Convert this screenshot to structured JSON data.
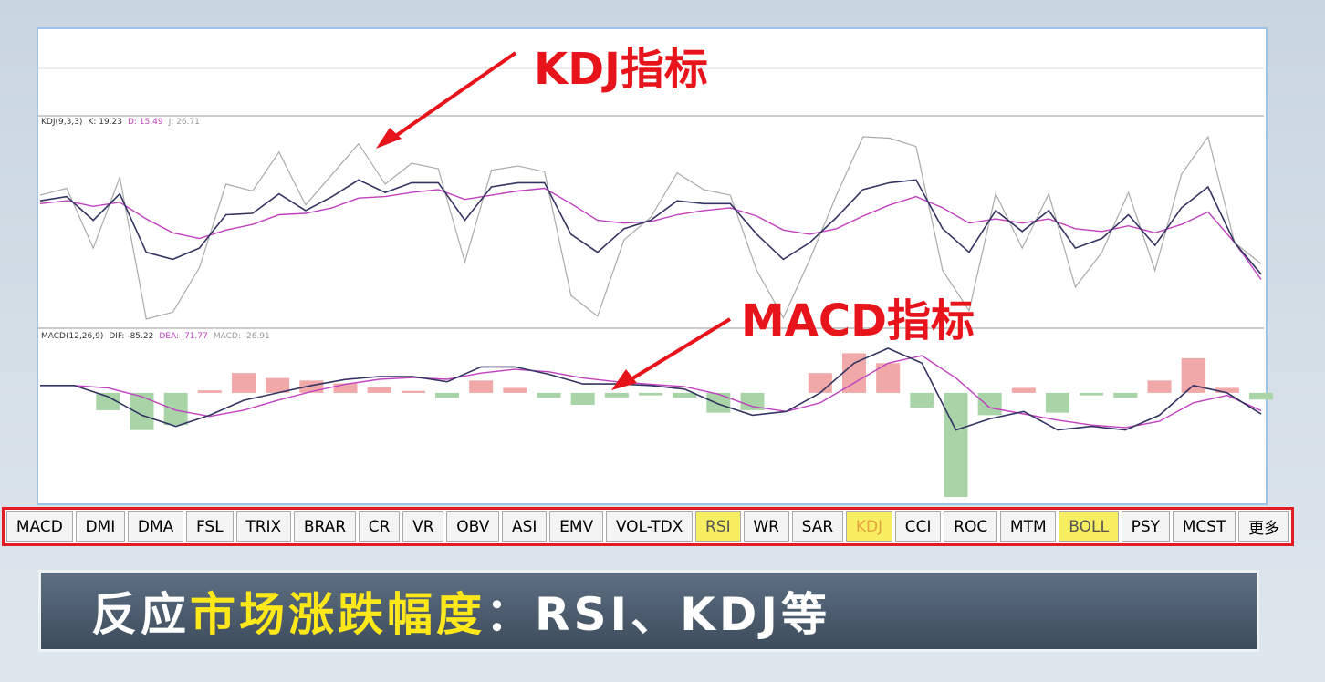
{
  "annotations": [
    "KDJ指标",
    "MACD指标"
  ],
  "kdj": {
    "header": [
      "KDJ(9,3,3)",
      "K: 19.23",
      "D: 15.49",
      "J: 26.71"
    ],
    "k": [
      72,
      75,
      58,
      77,
      35,
      30,
      38,
      62,
      63,
      77,
      65,
      75,
      87,
      78,
      85,
      85,
      58,
      82,
      85,
      85,
      48,
      35,
      52,
      58,
      72,
      70,
      70,
      48,
      30,
      42,
      60,
      80,
      85,
      87,
      52,
      35,
      65,
      50,
      65,
      38,
      45,
      62,
      40,
      67,
      82,
      42,
      19.23
    ],
    "d": [
      70,
      72,
      68,
      71,
      59,
      49,
      45,
      51,
      55,
      62,
      63,
      67,
      74,
      75,
      78,
      80,
      73,
      76,
      79,
      81,
      70,
      58,
      56,
      57,
      62,
      65,
      67,
      61,
      51,
      48,
      52,
      61,
      69,
      75,
      67,
      56,
      59,
      56,
      59,
      52,
      50,
      54,
      49,
      55,
      64,
      42,
      15.49
    ],
    "j": [
      76,
      81,
      38,
      89,
      -13,
      -8,
      24,
      84,
      79,
      107,
      69,
      91,
      113,
      84,
      99,
      95,
      28,
      94,
      97,
      93,
      4,
      -11,
      44,
      60,
      92,
      80,
      76,
      22,
      -12,
      30,
      76,
      118,
      117,
      111,
      22,
      -7,
      77,
      38,
      77,
      10,
      35,
      78,
      22,
      91,
      118,
      42,
      26.71
    ]
  },
  "macd": {
    "header": [
      "MACD(12,26,9)",
      "DIF: -85.22",
      "DEA: -71.77",
      "MACD: -26.91"
    ],
    "dif": [
      30,
      30,
      -15,
      -90,
      -135,
      -90,
      -30,
      0,
      30,
      54,
      66,
      66,
      45,
      105,
      105,
      75,
      36,
      36,
      30,
      15,
      -45,
      -90,
      -75,
      0,
      120,
      180,
      120,
      -150,
      -105,
      -75,
      -150,
      -135,
      -150,
      -90,
      30,
      0,
      -85.22
    ],
    "dea": [
      30,
      30,
      20,
      -15,
      -70,
      -95,
      -70,
      -30,
      5,
      35,
      55,
      62,
      55,
      80,
      95,
      85,
      60,
      45,
      35,
      25,
      -5,
      -55,
      -75,
      -40,
      40,
      120,
      150,
      60,
      -60,
      -85,
      -110,
      -130,
      -140,
      -115,
      -40,
      -10,
      -71.77
    ],
    "bars": [
      0,
      0,
      -70,
      -150,
      -130,
      10,
      80,
      60,
      50,
      38,
      22,
      8,
      -20,
      50,
      20,
      -20,
      -48,
      -18,
      -10,
      -20,
      -80,
      -70,
      0,
      80,
      160,
      120,
      -60,
      -420,
      -90,
      20,
      -80,
      -10,
      -20,
      50,
      140,
      20,
      -26.91
    ]
  },
  "buttons": {
    "labels": [
      "MACD",
      "DMI",
      "DMA",
      "FSL",
      "TRIX",
      "BRAR",
      "CR",
      "VR",
      "OBV",
      "ASI",
      "EMV",
      "VOL-TDX",
      "RSI",
      "WR",
      "SAR",
      "KDJ",
      "CCI",
      "ROC",
      "MTM",
      "BOLL",
      "PSY",
      "MCST",
      "更多"
    ],
    "highlighted": [
      12,
      15,
      19
    ],
    "active": 15
  },
  "banner": {
    "parts": [
      "反应",
      "市场涨跌幅度",
      "：RSI、KDJ等"
    ]
  }
}
